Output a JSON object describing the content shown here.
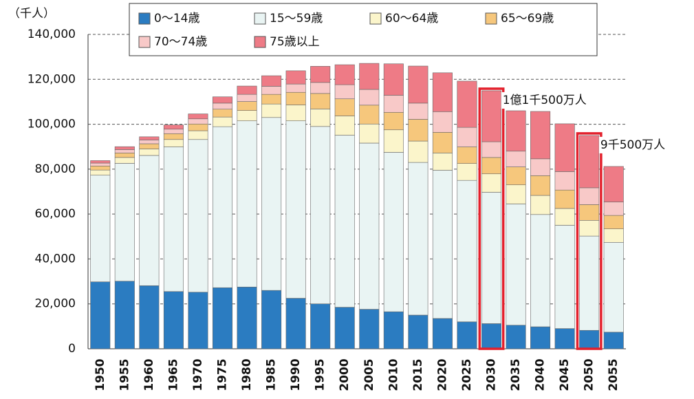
{
  "chart_data": {
    "type": "stacked-bar",
    "y_label": "（千人）",
    "categories": [
      "1950",
      "1955",
      "1960",
      "1965",
      "1970",
      "1975",
      "1980",
      "1985",
      "1990",
      "1995",
      "2000",
      "2005",
      "2010",
      "2015",
      "2020",
      "2025",
      "2030",
      "2035",
      "2040",
      "2045",
      "2050",
      "2055"
    ],
    "series": [
      {
        "name": "0～14歳",
        "color": "#2b7cc1",
        "values": [
          29800,
          30100,
          28100,
          25500,
          25200,
          27200,
          27500,
          26000,
          22500,
          20000,
          18500,
          17600,
          16500,
          15000,
          13500,
          12000,
          11200,
          10500,
          9800,
          9000,
          8200,
          7400
        ]
      },
      {
        "name": "15～59歳",
        "color": "#e9f4f3",
        "values": [
          47500,
          52500,
          58000,
          64400,
          68000,
          71700,
          74000,
          77000,
          79000,
          79000,
          76600,
          74000,
          71000,
          68000,
          66000,
          63000,
          58500,
          54000,
          50000,
          46000,
          42000,
          40000
        ]
      },
      {
        "name": "60～64歳",
        "color": "#fbf5cb",
        "values": [
          2300,
          2600,
          2900,
          3300,
          3900,
          4300,
          4600,
          6000,
          7100,
          7800,
          8600,
          8500,
          10000,
          9500,
          7700,
          7500,
          8200,
          8500,
          8500,
          7500,
          7000,
          6000
        ]
      },
      {
        "name": "65～69歳",
        "color": "#f6c77c",
        "values": [
          1800,
          2000,
          2300,
          2600,
          3000,
          3500,
          4000,
          4300,
          5600,
          6900,
          7600,
          8400,
          7800,
          9700,
          9200,
          7400,
          7300,
          8000,
          8800,
          8200,
          7000,
          6000
        ]
      },
      {
        "name": "70～74歳",
        "color": "#f8c9c8",
        "values": [
          1300,
          1500,
          1700,
          2000,
          2300,
          2700,
          3200,
          3600,
          3700,
          4900,
          6300,
          7000,
          7600,
          7200,
          9200,
          8700,
          7000,
          7000,
          7500,
          8200,
          7500,
          6000
        ]
      },
      {
        "name": "75歳以上",
        "color": "#ee7b86",
        "values": [
          1100,
          1300,
          1400,
          1900,
          2200,
          2800,
          3700,
          4700,
          5900,
          7200,
          8900,
          11600,
          14000,
          16500,
          17300,
          20600,
          22700,
          18000,
          21100,
          21300,
          23300,
          15800
        ]
      }
    ],
    "ylim": [
      0,
      140000
    ],
    "yticks": [
      0,
      {
        "value": 20000,
        "label": "20,000"
      },
      {
        "value": 40000,
        "label": "40,000"
      },
      {
        "value": 60000,
        "label": "60,000"
      },
      {
        "value": 80000,
        "label": "80,000"
      },
      {
        "value": 100000,
        "label": "100,000"
      },
      {
        "value": 120000,
        "label": "120,000"
      },
      {
        "value": 140000,
        "label": "140,000"
      }
    ],
    "grid": true,
    "annotations": [
      {
        "text": "1億1千500万人",
        "x": "2030"
      },
      {
        "text": "9千500万人",
        "x": "2050"
      }
    ]
  }
}
